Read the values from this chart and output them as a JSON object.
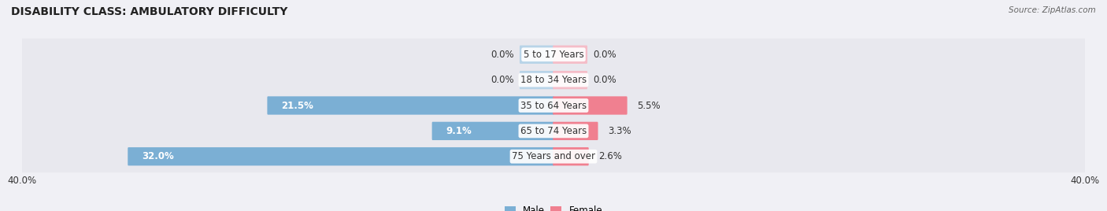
{
  "title": "DISABILITY CLASS: AMBULATORY DIFFICULTY",
  "source": "Source: ZipAtlas.com",
  "categories": [
    "5 to 17 Years",
    "18 to 34 Years",
    "35 to 64 Years",
    "65 to 74 Years",
    "75 Years and over"
  ],
  "male_values": [
    0.0,
    0.0,
    21.5,
    9.1,
    32.0
  ],
  "female_values": [
    0.0,
    0.0,
    5.5,
    3.3,
    2.6
  ],
  "male_color": "#7bafd4",
  "female_color": "#f08090",
  "male_stub_color": "#b8d4e8",
  "female_stub_color": "#f5bdc8",
  "row_bg_color": "#e8e8ee",
  "label_color": "#333333",
  "axis_max": 40.0,
  "bar_height": 0.62,
  "stub_size": 2.5,
  "title_fontsize": 10,
  "label_fontsize": 8.5,
  "tick_fontsize": 8.5
}
